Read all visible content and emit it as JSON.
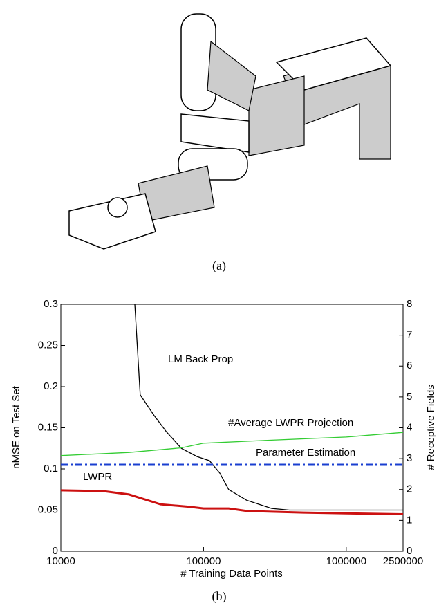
{
  "figure_a": {
    "caption": "(a)"
  },
  "chart_data": {
    "type": "line",
    "caption": "(b)",
    "xlabel": "# Training Data Points",
    "ylabel": "nMSE on Test Set",
    "y2label": "# Receptive Fields",
    "xscale": "log",
    "xlim": [
      10000,
      2500000
    ],
    "xticks": [
      10000,
      100000,
      1000000,
      2500000
    ],
    "ylim": [
      0,
      0.3
    ],
    "yticks": [
      0,
      0.05,
      0.1,
      0.15,
      0.2,
      0.25,
      0.3
    ],
    "y2lim": [
      0,
      8
    ],
    "y2ticks": [
      0,
      1,
      2,
      3,
      4,
      5,
      6,
      7,
      8
    ],
    "series": [
      {
        "name": "LM  Back Prop",
        "color": "#000000",
        "dash": "solid",
        "x": [
          33000,
          36000,
          45000,
          55000,
          70000,
          90000,
          110000,
          130000,
          150000,
          200000,
          300000,
          400000,
          2500000
        ],
        "values": [
          0.3,
          0.19,
          0.165,
          0.145,
          0.125,
          0.115,
          0.11,
          0.095,
          0.075,
          0.062,
          0.052,
          0.05,
          0.05
        ]
      },
      {
        "name": "#Average LWPR Projection",
        "color": "#33cc33",
        "dash": "solid",
        "axis": "y2",
        "x": [
          10000,
          30000,
          70000,
          100000,
          300000,
          1000000,
          2500000
        ],
        "values": [
          3.1,
          3.2,
          3.35,
          3.5,
          3.6,
          3.7,
          3.85
        ]
      },
      {
        "name": "Parameter Estimation",
        "color": "#1a3fd0",
        "dash": "dashdot",
        "x": [
          10000,
          2500000
        ],
        "values": [
          0.105,
          0.105
        ]
      },
      {
        "name": "LWPR",
        "color": "#cc1111",
        "dash": "solid",
        "x": [
          10000,
          20000,
          30000,
          50000,
          80000,
          100000,
          150000,
          200000,
          300000,
          500000,
          1000000,
          2500000
        ],
        "values": [
          0.074,
          0.073,
          0.069,
          0.057,
          0.054,
          0.052,
          0.052,
          0.049,
          0.048,
          0.047,
          0.046,
          0.045
        ]
      }
    ]
  }
}
